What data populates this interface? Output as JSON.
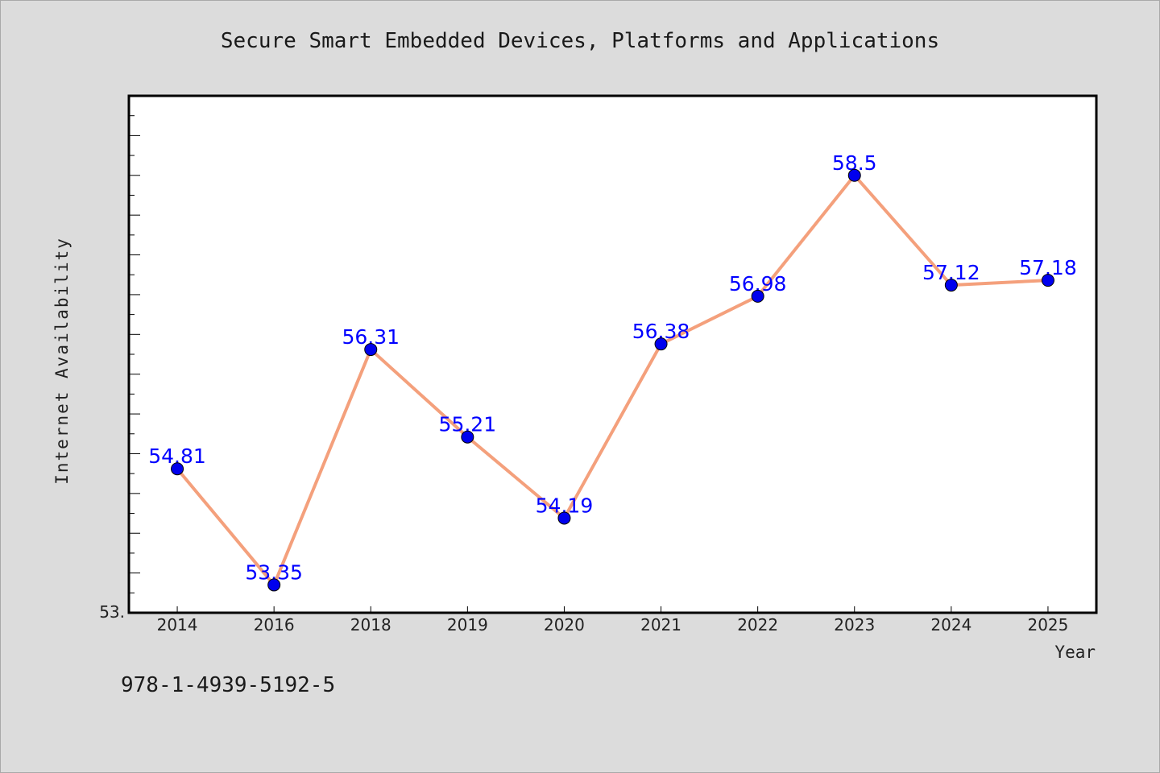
{
  "chart_data": {
    "type": "line",
    "title": "Secure Smart Embedded Devices, Platforms and Applications",
    "xlabel": "Year",
    "ylabel": "Internet Availability",
    "categories": [
      "2014",
      "2016",
      "2018",
      "2019",
      "2020",
      "2021",
      "2022",
      "2023",
      "2024",
      "2025"
    ],
    "series": [
      {
        "values": [
          54.81,
          53.35,
          56.31,
          55.21,
          54.19,
          56.38,
          56.98,
          58.5,
          57.12,
          57.18
        ],
        "labels": [
          "54.81",
          "53.35",
          "56.31",
          "55.21",
          "54.19",
          "56.38",
          "56.98",
          "58.5",
          "57.12",
          "57.18"
        ],
        "line_color": "#f4a07c",
        "marker_color": "#0000ee"
      }
    ],
    "ylim": [
      53.0,
      59.5
    ],
    "y_tick_label": "53.",
    "grid": false,
    "legend": "none"
  },
  "footer": {
    "isbn": "978-1-4939-5192-5"
  }
}
